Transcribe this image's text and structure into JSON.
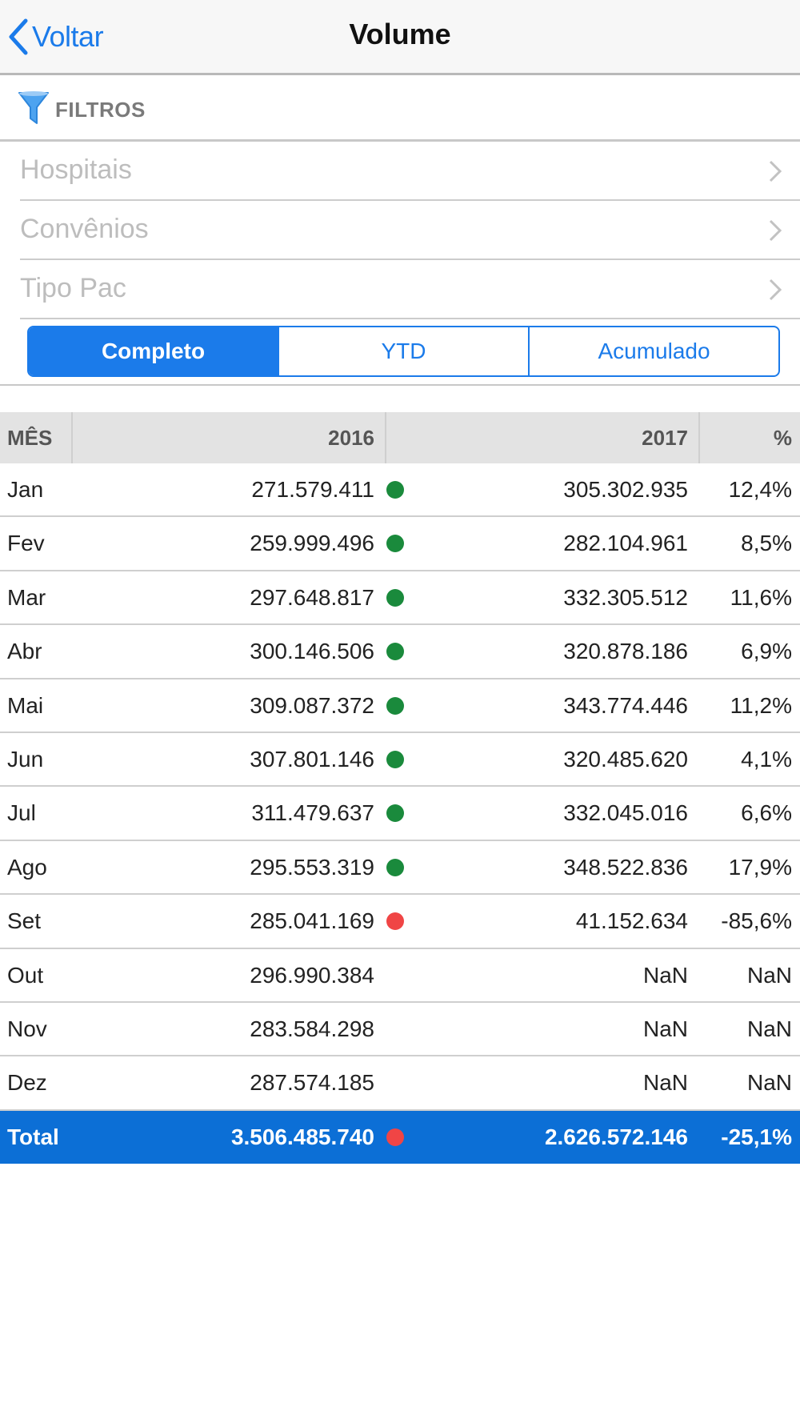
{
  "nav": {
    "back_label": "Voltar",
    "title": "Volume"
  },
  "filters": {
    "header_label": "FILTROS",
    "items": [
      {
        "label": "Hospitais"
      },
      {
        "label": "Convênios"
      },
      {
        "label": "Tipo Pac"
      }
    ]
  },
  "segments": [
    {
      "label": "Completo",
      "selected": true
    },
    {
      "label": "YTD",
      "selected": false
    },
    {
      "label": "Acumulado",
      "selected": false
    }
  ],
  "table": {
    "headers": {
      "month": "MÊS",
      "y1": "2016",
      "y2": "2017",
      "pct": "%"
    },
    "rows": [
      {
        "month": "Jan",
        "y1": "271.579.411",
        "status": "green",
        "y2": "305.302.935",
        "pct": "12,4%"
      },
      {
        "month": "Fev",
        "y1": "259.999.496",
        "status": "green",
        "y2": "282.104.961",
        "pct": "8,5%"
      },
      {
        "month": "Mar",
        "y1": "297.648.817",
        "status": "green",
        "y2": "332.305.512",
        "pct": "11,6%"
      },
      {
        "month": "Abr",
        "y1": "300.146.506",
        "status": "green",
        "y2": "320.878.186",
        "pct": "6,9%"
      },
      {
        "month": "Mai",
        "y1": "309.087.372",
        "status": "green",
        "y2": "343.774.446",
        "pct": "11,2%"
      },
      {
        "month": "Jun",
        "y1": "307.801.146",
        "status": "green",
        "y2": "320.485.620",
        "pct": "4,1%"
      },
      {
        "month": "Jul",
        "y1": "311.479.637",
        "status": "green",
        "y2": "332.045.016",
        "pct": "6,6%"
      },
      {
        "month": "Ago",
        "y1": "295.553.319",
        "status": "green",
        "y2": "348.522.836",
        "pct": "17,9%"
      },
      {
        "month": "Set",
        "y1": "285.041.169",
        "status": "red",
        "y2": "41.152.634",
        "pct": "-85,6%"
      },
      {
        "month": "Out",
        "y1": "296.990.384",
        "status": "none",
        "y2": "NaN",
        "pct": "NaN"
      },
      {
        "month": "Nov",
        "y1": "283.584.298",
        "status": "none",
        "y2": "NaN",
        "pct": "NaN"
      },
      {
        "month": "Dez",
        "y1": "287.574.185",
        "status": "none",
        "y2": "NaN",
        "pct": "NaN"
      }
    ],
    "total": {
      "month": "Total",
      "y1": "3.506.485.740",
      "status": "red",
      "y2": "2.626.572.146",
      "pct": "-25,1%"
    }
  },
  "colors": {
    "accent": "#1b7bea",
    "total_bg": "#0c6fd6",
    "status_green": "#1a8a3c",
    "status_red": "#f04545"
  }
}
